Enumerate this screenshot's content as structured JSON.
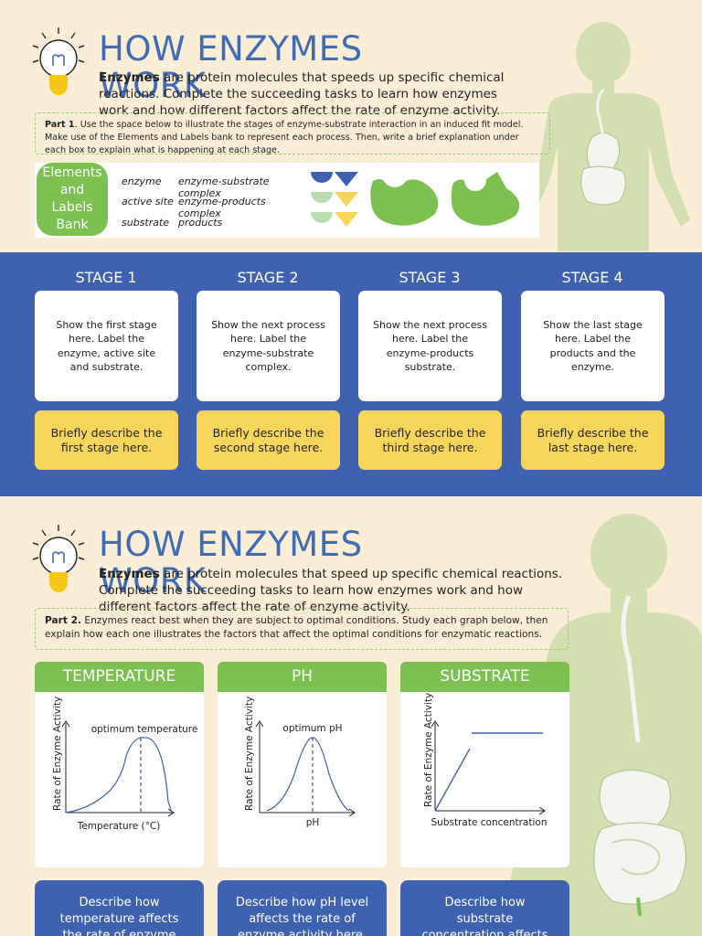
{
  "colors": {
    "background": "#fbeed7",
    "title": "#3f6cb5",
    "green": "#7cc052",
    "blue": "#3f62b0",
    "yellow": "#f8d65c",
    "silhouette": "#d3dfae"
  },
  "section1": {
    "icon": "lightbulb-icon",
    "title": "HOW ENZYMES WORK",
    "intro_bold": "Enzymes",
    "intro_rest": " are protein molecules that speeds up specific chemical reactions. Complete the succeeding tasks to learn how enzymes work and how different factors affect the rate of enzyme activity.",
    "part_label": "Part 1",
    "part_text": ". Use the space below to illustrate the stages of enzyme-substrate interaction in an induced fit model. Make use of the Elements and Labels bank to represent each process. Then, write a brief explanation under each box to explain what is happening at each stage.",
    "bank": {
      "heading": "Elements and Labels Bank",
      "terms_col1": [
        "enzyme",
        "active site",
        "substrate"
      ],
      "terms_col2": [
        "enzyme-substrate complex",
        "enzyme-products complex",
        "products"
      ]
    },
    "stages": [
      {
        "title": "STAGE 1",
        "prompt": "Show the first stage here. Label the enzyme, active site and substrate.",
        "desc": "Briefly describe the first stage here."
      },
      {
        "title": "STAGE 2",
        "prompt": "Show the next process here. Label the enzyme-substrate complex.",
        "desc": "Briefly describe the second stage here."
      },
      {
        "title": "STAGE 3",
        "prompt": "Show the next process here. Label the enzyme-products substrate.",
        "desc": "Briefly describe the third stage here."
      },
      {
        "title": "STAGE 4",
        "prompt": "Show the last stage here. Label the products and the enzyme.",
        "desc": "Briefly describe the last stage here."
      }
    ]
  },
  "section2": {
    "icon": "lightbulb-icon",
    "title": "HOW ENZYMES WORK",
    "intro_bold": "Enzymes",
    "intro_rest": " are protein molecules that speed up specific chemical reactions. Complete the succeeding tasks to learn how enzymes work and how different factors affect the rate of enzyme activity.",
    "part_label": "Part 2.",
    "part_text": " Enzymes react best when they are subject to optimal conditions. Study each graph below, then explain how each one illustrates the factors that affect the optimal conditions for enzymatic reactions.",
    "graphs": [
      {
        "heading": "TEMPERATURE",
        "ylabel": "Rate of Enzyme Activity",
        "xlabel": "Temperature (°C)",
        "annotation": "optimum temperature",
        "desc": "Describe how temperature affects the rate of enzyme activity here."
      },
      {
        "heading": "PH",
        "ylabel": "Rate of Enzyme Activity",
        "xlabel": "pH",
        "annotation": "optimum pH",
        "desc": "Describe how pH level affects the rate of enzyme activity here."
      },
      {
        "heading": "SUBSTRATE",
        "ylabel": "Rate of Enzyme Activity",
        "xlabel": "Substrate concentration",
        "annotation": "",
        "desc": "Describe how substrate concentration affects the rate of enzyme activity here."
      }
    ]
  }
}
